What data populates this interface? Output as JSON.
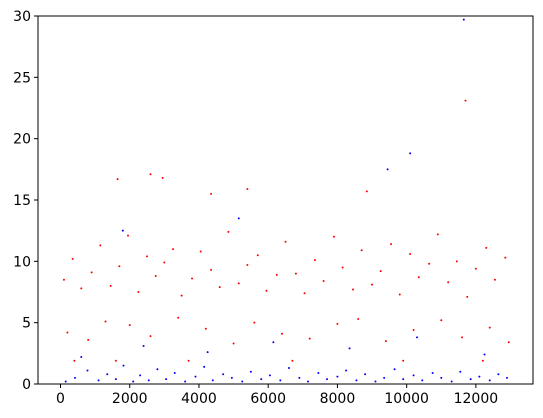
{
  "chart_data": {
    "type": "scatter",
    "title": "",
    "xlabel": "",
    "ylabel": "",
    "xlim": [
      -650,
      13650
    ],
    "ylim": [
      0,
      30
    ],
    "x_ticks": [
      0,
      2000,
      4000,
      6000,
      8000,
      10000,
      12000
    ],
    "x_tick_labels": [
      "0",
      "2000",
      "4000",
      "6000",
      "8000",
      "10000",
      "12000"
    ],
    "y_ticks": [
      0,
      5,
      10,
      15,
      20,
      25,
      30
    ],
    "y_tick_labels": [
      "0",
      "5",
      "10",
      "15",
      "20",
      "25",
      "30"
    ],
    "grid": false,
    "legend": "none",
    "series": [
      {
        "color": "#0000ff",
        "x": [
          150,
          420,
          780,
          1100,
          1350,
          1600,
          1820,
          2100,
          2300,
          2550,
          2800,
          3050,
          3300,
          3600,
          3900,
          4150,
          4400,
          4700,
          4950,
          5250,
          5500,
          5800,
          6050,
          6350,
          6600,
          6900,
          7150,
          7450,
          7700,
          8000,
          8250,
          8550,
          8800,
          9100,
          9350,
          9650,
          9900,
          10200,
          10450,
          10750,
          11000,
          11300,
          11550,
          11850,
          12100,
          12400,
          12650,
          12900,
          600,
          2400,
          4250,
          6150,
          8350,
          10300,
          12250,
          1800,
          5150,
          9450,
          10100,
          11650
        ],
        "y": [
          0.2,
          0.5,
          1.1,
          0.3,
          0.8,
          0.4,
          1.5,
          0.2,
          0.7,
          0.3,
          1.2,
          0.4,
          0.9,
          0.2,
          0.6,
          1.4,
          0.3,
          0.8,
          0.5,
          0.2,
          1.0,
          0.4,
          0.7,
          0.3,
          1.3,
          0.5,
          0.2,
          0.9,
          0.4,
          0.6,
          1.1,
          0.3,
          0.8,
          0.2,
          0.5,
          1.2,
          0.4,
          0.7,
          0.3,
          0.9,
          0.5,
          0.2,
          1.0,
          0.4,
          0.6,
          0.3,
          0.8,
          0.5,
          2.2,
          3.1,
          2.6,
          3.4,
          2.9,
          3.8,
          2.4,
          12.5,
          13.5,
          17.5,
          18.8,
          29.7
        ]
      },
      {
        "color": "#ff0000",
        "x": [
          100,
          350,
          600,
          900,
          1150,
          1450,
          1700,
          1950,
          2250,
          2500,
          2750,
          3000,
          3250,
          3500,
          3800,
          4050,
          4350,
          4600,
          4850,
          5150,
          5400,
          5700,
          5950,
          6250,
          6500,
          6800,
          7050,
          7350,
          7600,
          7900,
          8150,
          8450,
          8700,
          9000,
          9250,
          9550,
          9800,
          10100,
          10350,
          10650,
          10900,
          11200,
          11450,
          11750,
          12000,
          12300,
          12550,
          12850,
          200,
          800,
          1300,
          2000,
          2600,
          3400,
          4200,
          5000,
          5600,
          6400,
          7200,
          8000,
          8600,
          9400,
          10200,
          11000,
          11600,
          12400,
          12950,
          400,
          1600,
          3700,
          6700,
          9900,
          12200,
          1650,
          2600,
          2950,
          4350,
          5400,
          8850,
          11700
        ],
        "y": [
          8.5,
          10.2,
          7.8,
          9.1,
          11.3,
          8.0,
          9.6,
          12.1,
          7.5,
          10.4,
          8.8,
          9.9,
          11.0,
          7.2,
          8.6,
          10.8,
          9.3,
          7.9,
          12.4,
          8.2,
          9.7,
          10.5,
          7.6,
          8.9,
          11.6,
          9.0,
          7.4,
          10.1,
          8.4,
          12.0,
          9.5,
          7.7,
          10.9,
          8.1,
          9.2,
          11.4,
          7.3,
          10.6,
          8.7,
          9.8,
          12.2,
          8.3,
          10.0,
          7.1,
          9.4,
          11.1,
          8.5,
          10.3,
          4.2,
          3.6,
          5.1,
          4.8,
          3.9,
          5.4,
          4.5,
          3.3,
          5.0,
          4.1,
          3.7,
          4.9,
          5.3,
          3.5,
          4.4,
          5.2,
          3.8,
          4.6,
          3.4,
          1.9,
          1.9,
          1.9,
          1.9,
          1.9,
          1.9,
          16.7,
          17.1,
          16.8,
          15.5,
          15.9,
          15.7,
          23.1
        ]
      }
    ]
  }
}
